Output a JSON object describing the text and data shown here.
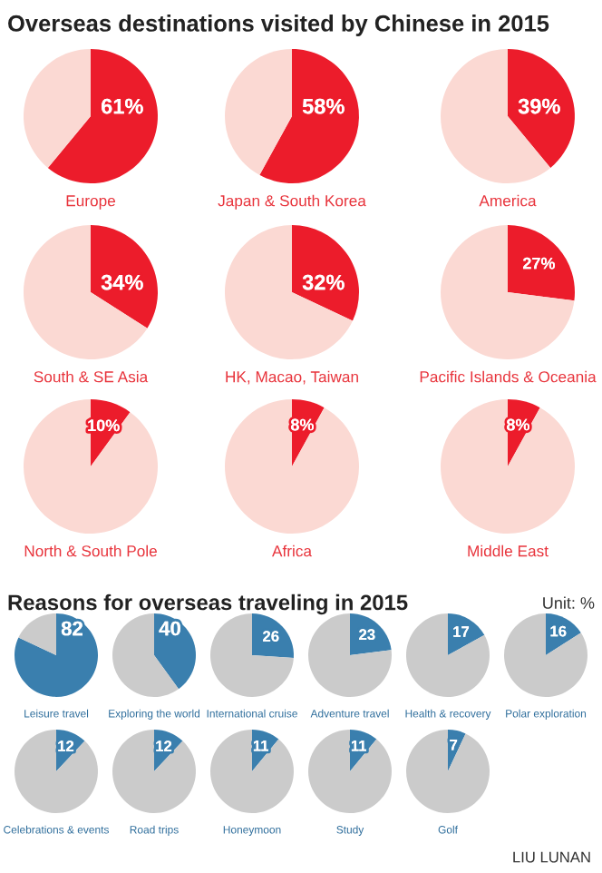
{
  "chart_data": [
    {
      "type": "other",
      "title": "Overseas destinations visited by Chinese in 2015"
    },
    {
      "type": "pie",
      "title": "Europe",
      "categories": [
        null,
        null
      ],
      "values": [
        61,
        39
      ],
      "colors": [
        "#ec1c2b",
        "#fbd9d3"
      ],
      "value_labels": [
        "61%",
        null
      ]
    },
    {
      "type": "pie",
      "title": "Japan & South Korea",
      "categories": [
        null,
        null
      ],
      "values": [
        58,
        42
      ],
      "colors": [
        "#ec1c2b",
        "#fbd9d3"
      ],
      "value_labels": [
        "58%",
        null
      ]
    },
    {
      "type": "pie",
      "title": "America",
      "categories": [
        null,
        null
      ],
      "values": [
        39,
        61
      ],
      "colors": [
        "#ec1c2b",
        "#fbd9d3"
      ],
      "value_labels": [
        "39%",
        null
      ]
    },
    {
      "type": "pie",
      "title": "South & SE Asia",
      "categories": [
        null,
        null
      ],
      "values": [
        34,
        66
      ],
      "colors": [
        "#ec1c2b",
        "#fbd9d3"
      ],
      "value_labels": [
        "34%",
        null
      ]
    },
    {
      "type": "pie",
      "title": "HK, Macao, Taiwan",
      "categories": [
        null,
        null
      ],
      "values": [
        32,
        68
      ],
      "colors": [
        "#ec1c2b",
        "#fbd9d3"
      ],
      "value_labels": [
        "32%",
        null
      ]
    },
    {
      "type": "pie",
      "title": "Pacific Islands & Oceania",
      "categories": [
        null,
        null
      ],
      "values": [
        27,
        73
      ],
      "colors": [
        "#ec1c2b",
        "#fbd9d3"
      ],
      "value_labels": [
        "27%",
        null
      ]
    },
    {
      "type": "pie",
      "title": "North & South Pole",
      "categories": [
        null,
        null
      ],
      "values": [
        10,
        90
      ],
      "colors": [
        "#ec1c2b",
        "#fbd9d3"
      ],
      "value_labels": [
        "10%",
        null
      ]
    },
    {
      "type": "pie",
      "title": "Africa",
      "categories": [
        null,
        null
      ],
      "values": [
        8,
        92
      ],
      "colors": [
        "#ec1c2b",
        "#fbd9d3"
      ],
      "value_labels": [
        "8%",
        null
      ]
    },
    {
      "type": "pie",
      "title": "Middle East",
      "categories": [
        null,
        null
      ],
      "values": [
        8,
        92
      ],
      "colors": [
        "#ec1c2b",
        "#fbd9d3"
      ],
      "value_labels": [
        "8%",
        null
      ]
    },
    {
      "type": "other",
      "title": "Reasons for overseas traveling in 2015",
      "annotations": [
        "Unit: %"
      ]
    },
    {
      "type": "pie",
      "title": "Leisure travel",
      "categories": [
        null,
        null
      ],
      "values": [
        82,
        18
      ],
      "colors": [
        "#3a7fae",
        "#cbcbcb"
      ],
      "value_labels": [
        "82",
        null
      ]
    },
    {
      "type": "pie",
      "title": "Exploring the world",
      "categories": [
        null,
        null
      ],
      "values": [
        40,
        60
      ],
      "colors": [
        "#3a7fae",
        "#cbcbcb"
      ],
      "value_labels": [
        "40",
        null
      ]
    },
    {
      "type": "pie",
      "title": "International cruise",
      "categories": [
        null,
        null
      ],
      "values": [
        26,
        74
      ],
      "colors": [
        "#3a7fae",
        "#cbcbcb"
      ],
      "value_labels": [
        "26",
        null
      ]
    },
    {
      "type": "pie",
      "title": "Adventure travel",
      "categories": [
        null,
        null
      ],
      "values": [
        23,
        77
      ],
      "colors": [
        "#3a7fae",
        "#cbcbcb"
      ],
      "value_labels": [
        "23",
        null
      ]
    },
    {
      "type": "pie",
      "title": "Health & recovery",
      "categories": [
        null,
        null
      ],
      "values": [
        17,
        83
      ],
      "colors": [
        "#3a7fae",
        "#cbcbcb"
      ],
      "value_labels": [
        "17",
        null
      ]
    },
    {
      "type": "pie",
      "title": "Polar exploration",
      "categories": [
        null,
        null
      ],
      "values": [
        16,
        84
      ],
      "colors": [
        "#3a7fae",
        "#cbcbcb"
      ],
      "value_labels": [
        "16",
        null
      ]
    },
    {
      "type": "pie",
      "title": "Celebrations & events",
      "categories": [
        null,
        null
      ],
      "values": [
        12,
        88
      ],
      "colors": [
        "#3a7fae",
        "#cbcbcb"
      ],
      "value_labels": [
        "12",
        null
      ]
    },
    {
      "type": "pie",
      "title": "Road trips",
      "categories": [
        null,
        null
      ],
      "values": [
        12,
        88
      ],
      "colors": [
        "#3a7fae",
        "#cbcbcb"
      ],
      "value_labels": [
        "12",
        null
      ]
    },
    {
      "type": "pie",
      "title": "Honeymoon",
      "categories": [
        null,
        null
      ],
      "values": [
        11,
        89
      ],
      "colors": [
        "#3a7fae",
        "#cbcbcb"
      ],
      "value_labels": [
        "11",
        null
      ]
    },
    {
      "type": "pie",
      "title": "Study",
      "categories": [
        null,
        null
      ],
      "values": [
        11,
        89
      ],
      "colors": [
        "#3a7fae",
        "#cbcbcb"
      ],
      "value_labels": [
        "11",
        null
      ]
    },
    {
      "type": "pie",
      "title": "Golf",
      "categories": [
        null,
        null
      ],
      "values": [
        7,
        93
      ],
      "colors": [
        "#3a7fae",
        "#cbcbcb"
      ],
      "value_labels": [
        "7",
        null
      ]
    },
    {
      "type": "other",
      "annotations": [
        "LIU LUNAN"
      ]
    }
  ]
}
